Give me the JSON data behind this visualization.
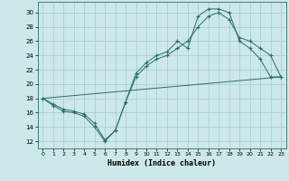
{
  "background_color": "#cce8e8",
  "grid_color": "#aad0d0",
  "line_color": "#2d6e65",
  "marker": "+",
  "xlabel": "Humidex (Indice chaleur)",
  "xlim": [
    -0.5,
    23.5
  ],
  "ylim": [
    11,
    31.5
  ],
  "xticks": [
    0,
    1,
    2,
    3,
    4,
    5,
    6,
    7,
    8,
    9,
    10,
    11,
    12,
    13,
    14,
    15,
    16,
    17,
    18,
    19,
    20,
    21,
    22,
    23
  ],
  "yticks": [
    12,
    14,
    16,
    18,
    20,
    22,
    24,
    26,
    28,
    30
  ],
  "line1_x": [
    0,
    1,
    2,
    3,
    4,
    5,
    6,
    7,
    8,
    9,
    10,
    11,
    12,
    13,
    14,
    15,
    16,
    17,
    18,
    19,
    20,
    21,
    22,
    23
  ],
  "line1_y": [
    18,
    17,
    16.2,
    16,
    15.5,
    14,
    12,
    13.5,
    17.5,
    21.5,
    23,
    24,
    24.5,
    26,
    25,
    29.5,
    30.5,
    30.5,
    30,
    26,
    25,
    23.5,
    21,
    21
  ],
  "line2_x": [
    0,
    1,
    2,
    3,
    4,
    5,
    6,
    7,
    8,
    9,
    10,
    11,
    12,
    13,
    14,
    15,
    16,
    17,
    18,
    19,
    20,
    21,
    22,
    23
  ],
  "line2_y": [
    18,
    17.2,
    16.5,
    16.2,
    15.8,
    14.5,
    12.2,
    13.5,
    17.5,
    21,
    22.5,
    23.5,
    24,
    25,
    26,
    28,
    29.5,
    30,
    29,
    26.5,
    26,
    25,
    24,
    21
  ],
  "line3_x": [
    0,
    23
  ],
  "line3_y": [
    18,
    21
  ]
}
